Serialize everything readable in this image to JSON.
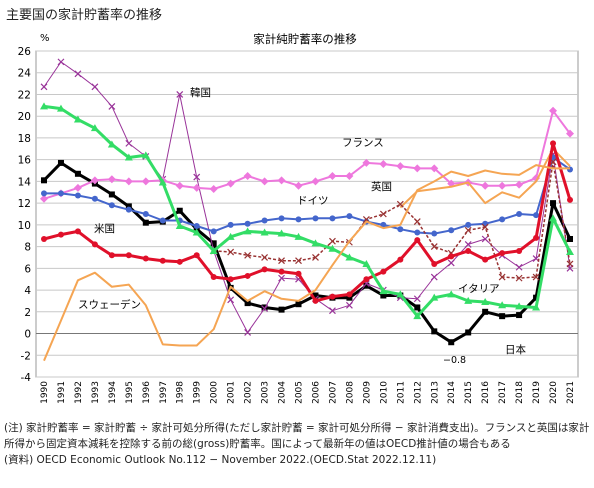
{
  "page_title": "主要国の家計貯蓄率の推移",
  "notes": {
    "note": "(注) 家計貯蓄率 = 家計貯蓄 ÷ 家計可処分所得(ただし家計貯蓄 = 家計可処分所得 − 家計消費支出)。フランスと英国は家計所得から固定資本減耗を控除する前の総(gross)貯蓄率。国によって最新年の値はOECD推計値の場合もある",
    "source": "(資料) OECD Economic Outlook No.112 − November 2022.(OECD.Stat 2022.12.11)"
  },
  "chart_data": {
    "type": "line",
    "title": "家計純貯蓄率の推移",
    "ylabel": "%",
    "ylim": [
      -4,
      26
    ],
    "yticks": [
      -4,
      -2,
      0,
      2,
      4,
      6,
      8,
      10,
      12,
      14,
      16,
      18,
      20,
      22,
      24,
      26
    ],
    "x": [
      "1990",
      "1991",
      "1992",
      "1993",
      "1994",
      "1995",
      "1996",
      "1997",
      "1998",
      "1999",
      "2000",
      "2001",
      "2002",
      "2003",
      "2004",
      "2005",
      "2006",
      "2007",
      "2008",
      "2009",
      "2010",
      "2011",
      "2012",
      "2013",
      "2014",
      "2015",
      "2016",
      "2017",
      "2018",
      "2019",
      "2020",
      "2021"
    ],
    "grid": true,
    "annotations": [
      {
        "text": "−0.8"
      }
    ],
    "series": [
      {
        "name": "日本",
        "color": "#000000",
        "width": 3,
        "marker": "square",
        "values": [
          14.1,
          15.7,
          14.7,
          13.8,
          12.8,
          11.7,
          10.2,
          10.3,
          11.3,
          9.6,
          8.3,
          4.2,
          2.8,
          2.4,
          2.2,
          2.7,
          3.5,
          3.3,
          3.3,
          4.4,
          3.5,
          3.5,
          2.4,
          0.2,
          -0.8,
          0.1,
          2.0,
          1.6,
          1.7,
          3.3,
          12.0,
          8.7
        ]
      },
      {
        "name": "韓国",
        "color": "#993399",
        "width": 1,
        "marker": "x",
        "values": [
          22.7,
          25.0,
          23.9,
          22.7,
          20.9,
          17.5,
          16.3,
          14.2,
          22.0,
          14.4,
          7.6,
          3.1,
          0.1,
          2.3,
          5.1,
          5.0,
          3.2,
          2.1,
          2.6,
          4.6,
          4.0,
          3.3,
          3.2,
          5.2,
          6.5,
          8.2,
          8.7,
          7.2,
          6.1,
          6.9,
          16.5,
          6.0
        ]
      },
      {
        "name": "フランス",
        "color": "#ee77dd",
        "width": 2,
        "marker": "diamond",
        "values": [
          12.4,
          12.9,
          13.4,
          14.1,
          14.2,
          14.0,
          14.0,
          14.1,
          13.6,
          13.4,
          13.3,
          13.8,
          14.5,
          14.0,
          14.1,
          13.6,
          14.0,
          14.5,
          14.5,
          15.7,
          15.6,
          15.4,
          15.2,
          15.2,
          13.8,
          13.9,
          13.6,
          13.6,
          13.7,
          14.3,
          20.5,
          18.4
        ]
      },
      {
        "name": "英国",
        "color": "#f5a553",
        "width": 2,
        "marker": "none",
        "values": [
          null,
          null,
          null,
          null,
          null,
          null,
          null,
          null,
          null,
          null,
          null,
          null,
          null,
          null,
          null,
          null,
          null,
          null,
          null,
          null,
          null,
          11.6,
          13.1,
          13.3,
          13.5,
          13.9,
          12.0,
          13.0,
          12.5,
          14.0,
          17.0,
          15.4
        ]
      },
      {
        "name": "ドイツ",
        "color": "#4466cc",
        "width": 2,
        "marker": "circle",
        "values": [
          12.9,
          12.9,
          12.7,
          12.4,
          11.8,
          11.4,
          11.0,
          10.4,
          10.4,
          9.9,
          9.4,
          10.0,
          10.1,
          10.4,
          10.6,
          10.5,
          10.6,
          10.6,
          10.8,
          10.3,
          10.0,
          9.6,
          9.3,
          9.2,
          9.5,
          10.0,
          10.1,
          10.5,
          11.0,
          10.9,
          16.2,
          15.1
        ]
      },
      {
        "name": "",
        "color": "#993333",
        "width": 1.5,
        "marker": "x",
        "dash": true,
        "values": [
          null,
          null,
          null,
          null,
          null,
          null,
          null,
          null,
          null,
          null,
          7.6,
          7.5,
          7.2,
          7.0,
          6.7,
          6.7,
          7.0,
          8.5,
          8.4,
          10.5,
          11.0,
          11.9,
          10.3,
          8.0,
          7.4,
          9.5,
          9.8,
          5.2,
          5.1,
          5.2,
          15.8,
          6.4
        ]
      },
      {
        "name": "米国",
        "color": "#e0102a",
        "width": 3,
        "marker": "circle",
        "values": [
          8.7,
          9.1,
          9.4,
          8.2,
          7.2,
          7.2,
          6.9,
          6.7,
          6.6,
          7.2,
          5.2,
          5.0,
          5.3,
          5.9,
          5.7,
          5.5,
          3.0,
          3.4,
          3.6,
          5.0,
          5.7,
          6.8,
          8.6,
          6.4,
          7.1,
          7.6,
          6.8,
          7.4,
          7.6,
          8.8,
          17.5,
          12.3
        ]
      },
      {
        "name": "イタリア",
        "color": "#33dd66",
        "width": 3,
        "marker": "triangle",
        "values": [
          20.9,
          20.7,
          19.7,
          18.9,
          17.4,
          16.2,
          16.4,
          13.9,
          9.9,
          9.3,
          7.6,
          8.9,
          9.4,
          9.3,
          9.2,
          8.9,
          8.3,
          7.8,
          7.0,
          6.4,
          3.9,
          3.6,
          1.6,
          3.3,
          3.6,
          3.0,
          2.9,
          2.6,
          2.5,
          2.4,
          10.6,
          7.5
        ]
      },
      {
        "name": "スウェーデン",
        "color": "#f5a553",
        "width": 2,
        "marker": "none",
        "values": [
          -2.5,
          1.2,
          4.9,
          5.6,
          4.3,
          4.5,
          2.6,
          -1.0,
          -1.1,
          -1.1,
          0.4,
          4.3,
          3.0,
          3.9,
          3.2,
          3.0,
          4.0,
          6.3,
          8.5,
          10.3,
          9.7,
          10.0,
          13.2,
          14.0,
          14.9,
          14.5,
          15.0,
          14.7,
          14.6,
          15.5,
          15.2,
          15.2
        ]
      }
    ],
    "labels": {
      "japan": "日本",
      "korea": "韓国",
      "france": "フランス",
      "uk": "英国",
      "germany": "ドイツ",
      "us": "米国",
      "italy": "イタリア",
      "sweden": "スウェーデン"
    }
  }
}
